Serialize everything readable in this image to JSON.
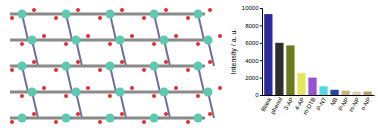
{
  "chart_data": {
    "type": "bar",
    "y_label": "Intensity / a. u.",
    "categories": [
      "Blank",
      "phenol",
      "3-AP",
      "4-AP",
      "m-DTB",
      "P-NT",
      "NB",
      "P-NP",
      "m-NP",
      "o-NP"
    ],
    "values": [
      9300,
      6000,
      5700,
      2500,
      2000,
      1000,
      600,
      500,
      400,
      400
    ],
    "colors": [
      "#2a2a9e",
      "#2e2e2e",
      "#6b7a1f",
      "#e6e65c",
      "#9a52d0",
      "#52d8e2",
      "#2c46a0",
      "#c9b274",
      "#d9d1a4",
      "#b9a162"
    ],
    "ylim": [
      0,
      10000
    ],
    "yticks": [
      0,
      2000,
      4000,
      6000,
      8000,
      10000
    ]
  }
}
